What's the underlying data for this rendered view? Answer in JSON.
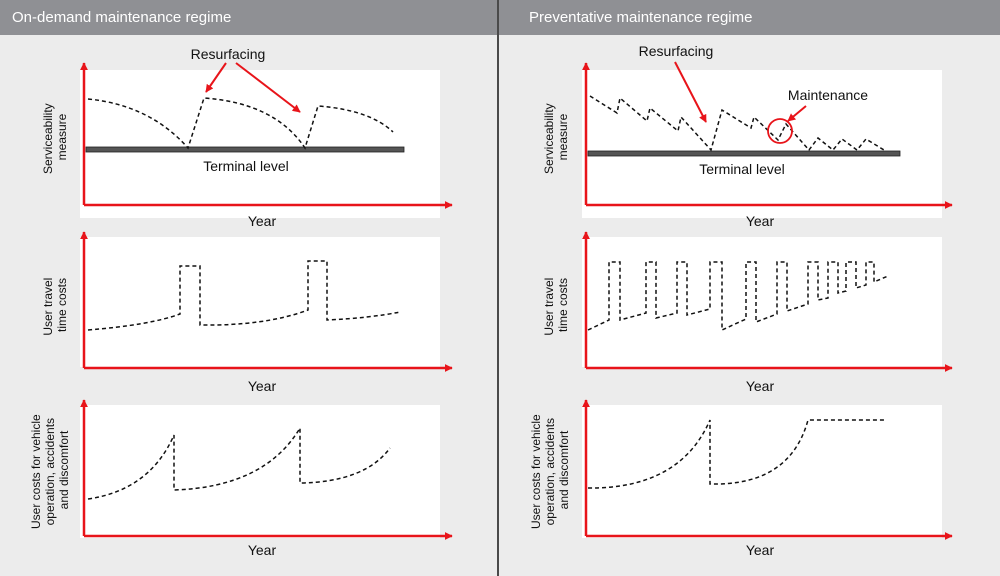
{
  "headers": {
    "left": "On-demand maintenance regime",
    "right": "Preventative maintenance regime"
  },
  "axis_x_label": "Year",
  "panels": {
    "serviceability": {
      "y_label_lines": [
        "Serviceability",
        "measure"
      ],
      "terminal_label": "Terminal level",
      "resurfacing_label": "Resurfacing",
      "maintenance_label": "Maintenance"
    },
    "travel": {
      "y_label_lines": [
        "User travel",
        "time costs"
      ]
    },
    "vehicle": {
      "y_label_lines": [
        "User costs for vehicle",
        "operation, accidents",
        "and discomfort"
      ]
    }
  },
  "colors": {
    "header_bg": "#8f9094",
    "panel_bg": "#ffffff",
    "page_bg": "#ececec",
    "axis": "#e8141a",
    "curve": "#111111",
    "terminal_bar": "#555555"
  },
  "icons": [
    "arrow-head-icon",
    "maintenance-circle-icon"
  ]
}
